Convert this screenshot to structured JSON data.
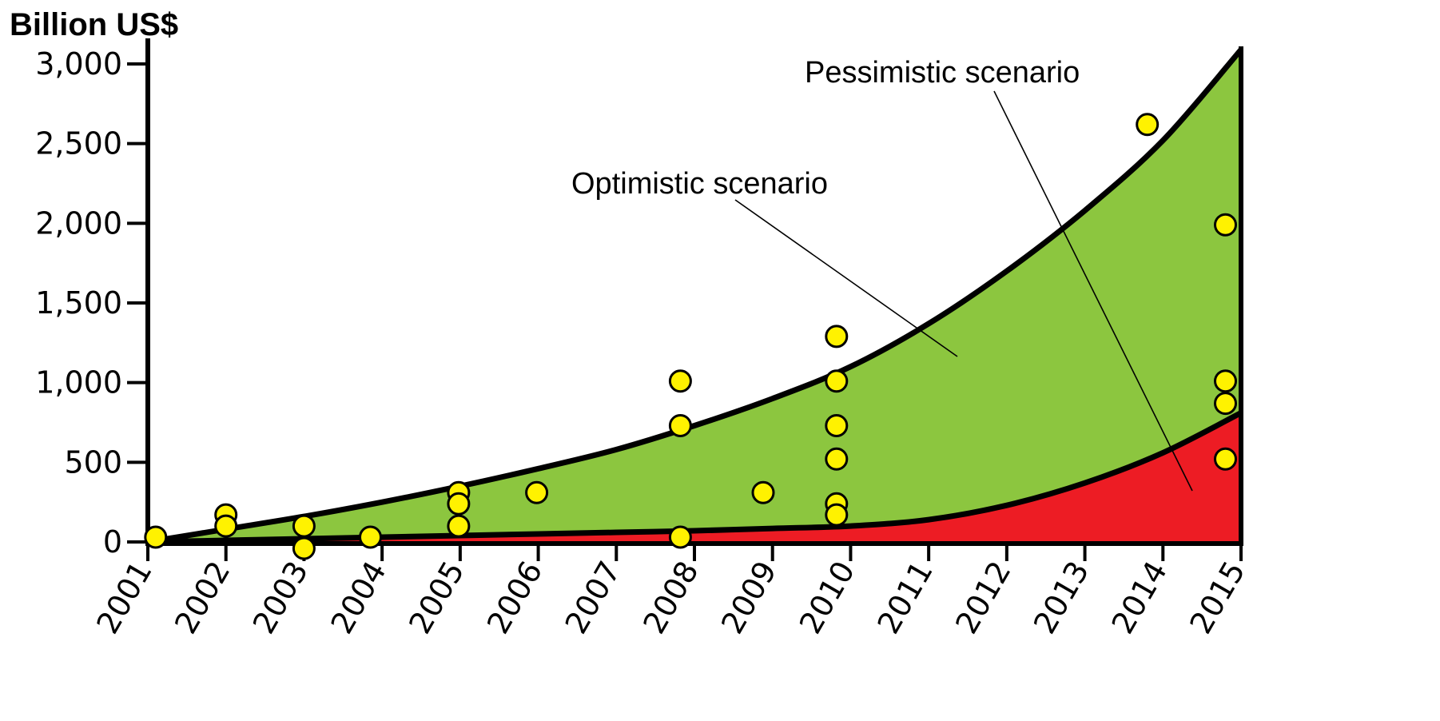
{
  "chart_data": {
    "type": "area",
    "title": "",
    "ylabel": "Billion US$",
    "xlabel": "",
    "x_ticks": [
      "2001",
      "2002",
      "2003",
      "2004",
      "2005",
      "2006",
      "2007",
      "2008",
      "2009",
      "2010",
      "2011",
      "2012",
      "2013",
      "2014",
      "2015"
    ],
    "y_ticks": [
      "0",
      "500",
      "1,000",
      "1,500",
      "2,000",
      "2,500",
      "3,000"
    ],
    "xlim": [
      2001,
      2015
    ],
    "ylim": [
      0,
      3000
    ],
    "grid": false,
    "legend": "none",
    "series": [
      {
        "name": "Optimistic scenario",
        "color": "#8CC63F",
        "points": [
          [
            2001,
            0
          ],
          [
            2002,
            80
          ],
          [
            2003,
            160
          ],
          [
            2004,
            250
          ],
          [
            2005,
            350
          ],
          [
            2006,
            460
          ],
          [
            2007,
            580
          ],
          [
            2008,
            730
          ],
          [
            2009,
            900
          ],
          [
            2010,
            1100
          ],
          [
            2011,
            1370
          ],
          [
            2012,
            1700
          ],
          [
            2013,
            2080
          ],
          [
            2014,
            2520
          ],
          [
            2015,
            3090
          ]
        ]
      },
      {
        "name": "Pessimistic scenario",
        "color": "#ED1C24",
        "points": [
          [
            2001,
            0
          ],
          [
            2002,
            10
          ],
          [
            2003,
            20
          ],
          [
            2004,
            30
          ],
          [
            2005,
            40
          ],
          [
            2006,
            50
          ],
          [
            2007,
            60
          ],
          [
            2008,
            70
          ],
          [
            2009,
            85
          ],
          [
            2010,
            100
          ],
          [
            2011,
            140
          ],
          [
            2012,
            230
          ],
          [
            2013,
            370
          ],
          [
            2014,
            560
          ],
          [
            2015,
            810
          ]
        ]
      }
    ],
    "estimates": {
      "color": "#FFF200",
      "points": [
        [
          2001.1,
          30
        ],
        [
          2002,
          170
        ],
        [
          2002,
          100
        ],
        [
          2003,
          100
        ],
        [
          2003,
          -40
        ],
        [
          2003.85,
          30
        ],
        [
          2004.98,
          310
        ],
        [
          2004.98,
          240
        ],
        [
          2004.98,
          100
        ],
        [
          2005.98,
          310
        ],
        [
          2007.82,
          1010
        ],
        [
          2007.82,
          730
        ],
        [
          2007.82,
          30
        ],
        [
          2008.88,
          310
        ],
        [
          2009.82,
          1290
        ],
        [
          2009.82,
          1010
        ],
        [
          2009.82,
          730
        ],
        [
          2009.82,
          520
        ],
        [
          2009.82,
          240
        ],
        [
          2009.82,
          170
        ],
        [
          2013.8,
          2620
        ],
        [
          2014.8,
          1990
        ],
        [
          2014.8,
          1010
        ],
        [
          2014.8,
          870
        ],
        [
          2014.8,
          520
        ]
      ]
    },
    "annotations": [
      {
        "text": "Optimistic scenario",
        "points_to": "Optimistic scenario"
      },
      {
        "text": "Pessimistic scenario",
        "points_to": "Pessimistic scenario"
      }
    ]
  }
}
